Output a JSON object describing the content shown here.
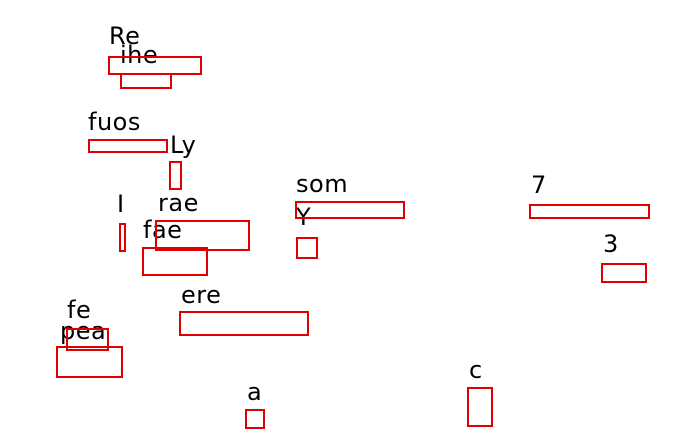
{
  "labels": {
    "re": "Re",
    "ihe": "ihe",
    "fuos": "fuos",
    "ly": "Ly",
    "som": "som",
    "seven": "7",
    "i": "I",
    "rae": "rae",
    "y": "Y",
    "fae": "fae",
    "three": "3",
    "ere": "ere",
    "fe": "fe",
    "pea": "pea",
    "c": "c",
    "a": "a"
  },
  "colors": {
    "box_border": "#e00000",
    "text": "#000000",
    "background": "#ffffff"
  }
}
